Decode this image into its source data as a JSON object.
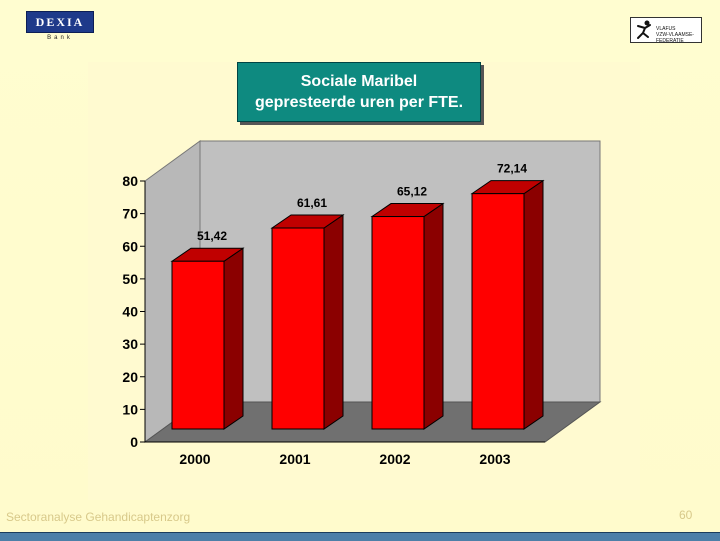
{
  "logos": {
    "left_brand": "DEXIA",
    "left_sub": "Bank",
    "right_text_line1": "VLAFUS",
    "right_text_line2": "VZW-VLAAMSE-FEDERATIE"
  },
  "title": {
    "line1": "Sociale Maribel",
    "line2": "gepresteerde uren per FTE."
  },
  "footer": {
    "text": "Sectoranalyse Gehandicaptenzorg",
    "page_number": "60"
  },
  "colors": {
    "bar_front": "#ff0000",
    "bar_side": "#8b0000",
    "bar_top": "#c00000",
    "title_bg": "#0e8a80",
    "back_wall": "#c0c0c0",
    "floor": "#707070"
  },
  "chart_data": {
    "type": "bar",
    "categories": [
      "2000",
      "2001",
      "2002",
      "2003"
    ],
    "values": [
      51.42,
      61.61,
      65.12,
      72.14
    ],
    "data_labels": [
      "51,42",
      "61,61",
      "65,12",
      "72,14"
    ],
    "yticks": [
      "0",
      "10",
      "20",
      "30",
      "40",
      "50",
      "60",
      "70",
      "80"
    ],
    "ylim": [
      0,
      80
    ],
    "grid": false,
    "style": "3d",
    "xlabel": "",
    "ylabel": ""
  }
}
